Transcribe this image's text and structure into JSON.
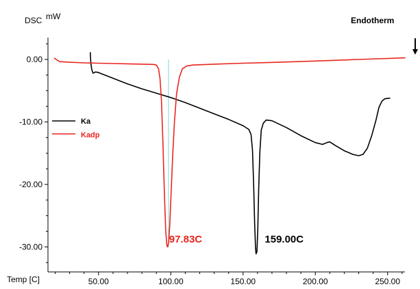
{
  "chart_data": {
    "type": "line",
    "ylabel": "DSC",
    "yunit": "mW",
    "xlabel": "Temp [C]",
    "corner_note": "Endotherm",
    "xlim": [
      15,
      262
    ],
    "ylim": [
      -34,
      3.5
    ],
    "x_ticks": [
      50,
      100,
      150,
      200,
      250
    ],
    "x_tick_labels": [
      "50.00",
      "100.00",
      "150.00",
      "200.00",
      "250.00"
    ],
    "y_ticks": [
      0,
      -10,
      -20,
      -30
    ],
    "y_tick_labels": [
      "0.00",
      "-10.00",
      "-20.00",
      "-30.00"
    ],
    "legend_position": "left",
    "series": [
      {
        "name": "Ka",
        "color": "#000000",
        "points": [
          [
            44.3,
            1.1
          ],
          [
            44.7,
            -0.6
          ],
          [
            45.3,
            -1.6
          ],
          [
            46.2,
            -2.2
          ],
          [
            48,
            -2.0
          ],
          [
            50,
            -2.1
          ],
          [
            60,
            -3.0
          ],
          [
            70,
            -3.9
          ],
          [
            80,
            -4.7
          ],
          [
            90,
            -5.4
          ],
          [
            100,
            -6.1
          ],
          [
            110,
            -6.9
          ],
          [
            120,
            -7.8
          ],
          [
            130,
            -8.7
          ],
          [
            140,
            -9.6
          ],
          [
            150,
            -10.6
          ],
          [
            154,
            -11.2
          ],
          [
            155.5,
            -12.0
          ],
          [
            156.5,
            -14.5
          ],
          [
            157.3,
            -20.0
          ],
          [
            158,
            -26.0
          ],
          [
            158.6,
            -30.0
          ],
          [
            159,
            -31.1
          ],
          [
            159.6,
            -30.8
          ],
          [
            160.2,
            -27.0
          ],
          [
            160.8,
            -21.0
          ],
          [
            161.6,
            -15.0
          ],
          [
            162.6,
            -11.3
          ],
          [
            164,
            -10.2
          ],
          [
            166,
            -9.7
          ],
          [
            170,
            -9.8
          ],
          [
            180,
            -10.9
          ],
          [
            190,
            -12.2
          ],
          [
            200,
            -13.3
          ],
          [
            205,
            -13.6
          ],
          [
            208,
            -13.3
          ],
          [
            210,
            -13.2
          ],
          [
            214,
            -13.8
          ],
          [
            220,
            -14.6
          ],
          [
            226,
            -15.2
          ],
          [
            230,
            -15.4
          ],
          [
            233,
            -15.2
          ],
          [
            236,
            -14.2
          ],
          [
            239,
            -12.2
          ],
          [
            242,
            -9.7
          ],
          [
            244,
            -7.7
          ],
          [
            246,
            -6.7
          ],
          [
            248,
            -6.3
          ],
          [
            251.5,
            -6.2
          ]
        ]
      },
      {
        "name": "Kadp",
        "color": "#e8261f",
        "points": [
          [
            19.5,
            0.2
          ],
          [
            21,
            -0.05
          ],
          [
            23,
            -0.35
          ],
          [
            30,
            -0.45
          ],
          [
            40,
            -0.55
          ],
          [
            50,
            -0.6
          ],
          [
            60,
            -0.65
          ],
          [
            70,
            -0.7
          ],
          [
            80,
            -0.75
          ],
          [
            88,
            -0.8
          ],
          [
            90,
            -0.9
          ],
          [
            91.5,
            -1.5
          ],
          [
            92.5,
            -3.0
          ],
          [
            93.5,
            -6.5
          ],
          [
            94.5,
            -13.0
          ],
          [
            95.5,
            -21.0
          ],
          [
            96.5,
            -27.5
          ],
          [
            97.3,
            -29.8
          ],
          [
            97.83,
            -30.0
          ],
          [
            98.5,
            -29.3
          ],
          [
            99.3,
            -26.5
          ],
          [
            100.2,
            -21.5
          ],
          [
            101.3,
            -15.5
          ],
          [
            102.5,
            -10.0
          ],
          [
            104,
            -5.5
          ],
          [
            106,
            -2.8
          ],
          [
            108,
            -1.5
          ],
          [
            111,
            -1.05
          ],
          [
            115,
            -0.9
          ],
          [
            130,
            -0.75
          ],
          [
            150,
            -0.6
          ],
          [
            175,
            -0.45
          ],
          [
            200,
            -0.25
          ],
          [
            230,
            0.0
          ],
          [
            262,
            0.25
          ]
        ]
      }
    ],
    "marker_line": {
      "x": 98.4,
      "y_from": 0.0,
      "y_to": -30.0,
      "color": "#7fd6d6"
    },
    "annotations": [
      {
        "text": "97.83C",
        "x": 98.8,
        "y": -29.3,
        "color": "#e8261f"
      },
      {
        "text": "159.00C",
        "x": 165,
        "y": -29.3,
        "color": "#000000"
      }
    ]
  }
}
